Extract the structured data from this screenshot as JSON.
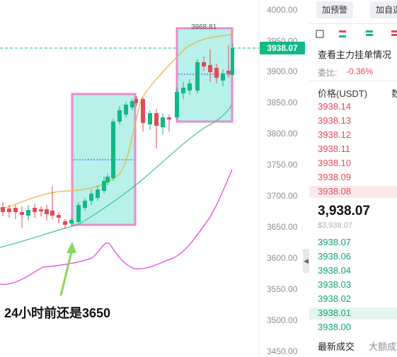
{
  "chart": {
    "price_axis": [
      "4000.00",
      "3950.00",
      "3900.00",
      "3850.00",
      "3800.00",
      "3750.00",
      "3700.00",
      "3650.00",
      "3600.00",
      "3550.00",
      "3500.00",
      "3450.00"
    ],
    "current_price_tag": "3938.07",
    "high_label": "3968.81",
    "annotation": "24小时前还是3650",
    "colors": {
      "up": "#12b886",
      "down": "#e24a5a",
      "box_fill": "#b8f0ea",
      "box_border": "#e58ec8",
      "ma_short": "#e6b53a",
      "ma_long": "#41c58f",
      "indicator": "#e43fe0",
      "arrow": "#8ad75a"
    }
  },
  "right_panel": {
    "buttons": {
      "alert": "加预警",
      "watch": "加自选"
    },
    "orderbook_title": "查看主力挂单情况",
    "ratio_label": "委比:",
    "ratio_value": "-0.36%",
    "col_price": "价格(USDT)",
    "col_qty": "数",
    "asks": [
      "3938.14",
      "3938.13",
      "3938.12",
      "3938.11",
      "3938.10",
      "3938.09",
      "3938.08"
    ],
    "last_price": "3,938.07",
    "last_price_sub": "$3,938.07",
    "bids": [
      "3938.07",
      "3938.06",
      "3938.04",
      "3938.03",
      "3938.02",
      "3938.01",
      "3938.00"
    ],
    "tabs": {
      "latest": "最新成交",
      "large": "大额成交"
    },
    "icons": [
      "layout-icon-1",
      "layout-icon-2",
      "layout-icon-3",
      "layout-icon-4"
    ]
  }
}
